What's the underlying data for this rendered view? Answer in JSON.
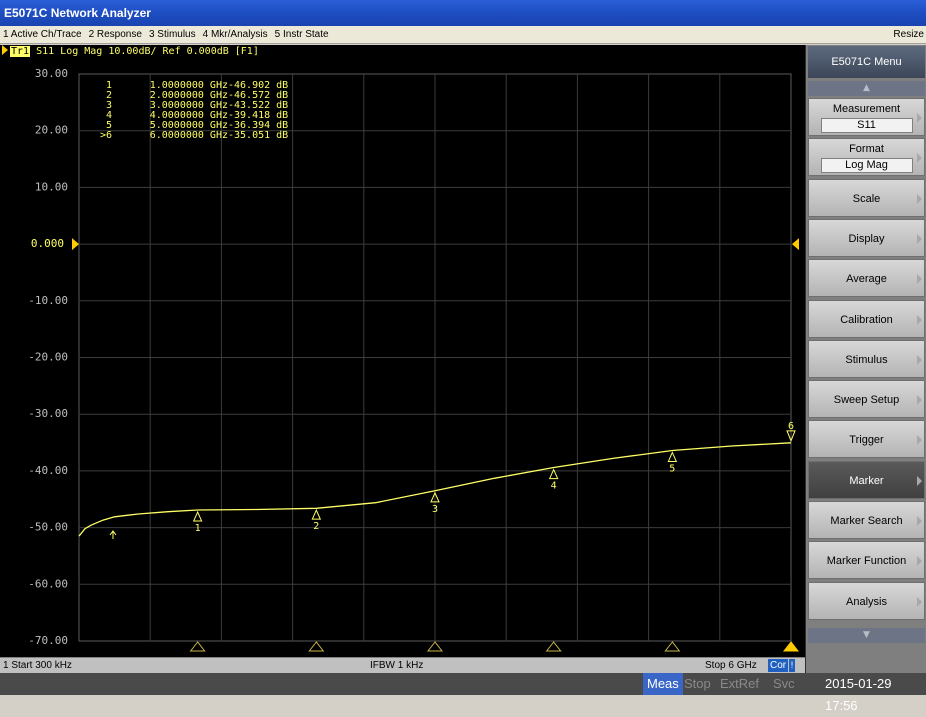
{
  "window": {
    "title": "E5071C Network Analyzer"
  },
  "menubar": {
    "items": [
      "1 Active Ch/Trace",
      "2 Response",
      "3 Stimulus",
      "4 Mkr/Analysis",
      "5 Instr State"
    ],
    "resize": "Resize"
  },
  "trace": {
    "label": "Tr1",
    "header": "S11 Log Mag 10.00dB/ Ref 0.000dB [F1]",
    "color": "#ffff66"
  },
  "markers": [
    {
      "id": "1",
      "freq": "1.0000000 GHz",
      "value": "-46.902 dB"
    },
    {
      "id": "2",
      "freq": "2.0000000 GHz",
      "value": "-46.572 dB"
    },
    {
      "id": "3",
      "freq": "3.0000000 GHz",
      "value": "-43.522 dB"
    },
    {
      "id": "4",
      "freq": "4.0000000 GHz",
      "value": "-39.418 dB"
    },
    {
      "id": "5",
      "freq": "5.0000000 GHz",
      "value": "-36.394 dB"
    },
    {
      "id": ">6",
      "freq": "6.0000000 GHz",
      "value": "-35.051 dB"
    }
  ],
  "chart_data": {
    "type": "line",
    "x_range_ghz": [
      0.0003,
      6
    ],
    "ylim": [
      -70,
      30
    ],
    "y_ticks": [
      "30.00",
      "20.00",
      "10.00",
      "0.000",
      "-10.00",
      "-20.00",
      "-30.00",
      "-40.00",
      "-50.00",
      "-60.00",
      "-70.00"
    ],
    "reference_level": "0.000",
    "grid": true,
    "series": [
      {
        "x": [
          0.0003,
          0.05,
          0.1,
          0.2,
          0.3,
          0.5,
          0.75,
          1.0,
          1.5,
          2.0,
          2.5,
          3.0,
          3.5,
          4.0,
          4.5,
          5.0,
          5.5,
          6.0
        ],
        "y": [
          -51.5,
          -50.2,
          -49.6,
          -48.7,
          -48.1,
          -47.6,
          -47.2,
          -46.9,
          -46.8,
          -46.6,
          -45.6,
          -43.5,
          -41.3,
          -39.4,
          -37.8,
          -36.4,
          -35.6,
          -35.05
        ]
      }
    ],
    "marker_x": [
      1,
      2,
      3,
      4,
      5,
      6
    ],
    "marker_y": [
      -46.902,
      -46.572,
      -43.522,
      -39.418,
      -36.394,
      -35.051
    ],
    "marker_labels": [
      "1",
      "2",
      "3",
      "4",
      "5",
      "6"
    ]
  },
  "status": {
    "start": "1 Start 300 kHz",
    "ifbw": "IFBW 1 kHz",
    "stop": "Stop 6 GHz",
    "cor": "Cor",
    "cor_extra": "!"
  },
  "bottom": {
    "meas": "Meas",
    "stop": "Stop",
    "extref": "ExtRef",
    "svc": "Svc",
    "clock": "2015-01-29 17:56"
  },
  "softkeys": {
    "title": "E5071C Menu",
    "items": [
      {
        "label": "Measurement",
        "value": "S11"
      },
      {
        "label": "Format",
        "value": "Log Mag"
      },
      {
        "label": "Scale"
      },
      {
        "label": "Display"
      },
      {
        "label": "Average"
      },
      {
        "label": "Calibration"
      },
      {
        "label": "Stimulus"
      },
      {
        "label": "Sweep Setup"
      },
      {
        "label": "Trigger"
      },
      {
        "label": "Marker",
        "selected": true
      },
      {
        "label": "Marker Search"
      },
      {
        "label": "Marker Function"
      },
      {
        "label": "Analysis"
      }
    ]
  }
}
